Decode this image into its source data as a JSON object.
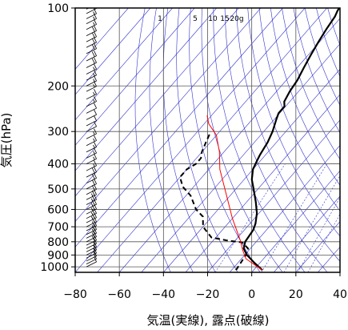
{
  "chart_data": {
    "type": "line",
    "title": "",
    "xlabel": "気温(実線), 露点(破線)",
    "ylabel": "気圧(hPa)",
    "xlim": [
      -80,
      40
    ],
    "ylim": [
      1050,
      100
    ],
    "y_scale": "log",
    "x_ticks": [
      -80,
      -60,
      -40,
      -20,
      0,
      20,
      40
    ],
    "x_tick_labels": [
      "−80",
      "−60",
      "−40",
      "−20",
      "0",
      "20",
      "40"
    ],
    "y_ticks": [
      100,
      200,
      300,
      400,
      500,
      600,
      700,
      800,
      900,
      1000
    ],
    "mixing_ratio_labels": [
      "1",
      "5",
      "10",
      "15",
      "20g"
    ],
    "grid": true,
    "colors": {
      "temperature": "#000000",
      "dewpoint": "#000000",
      "parcel": "#ff0000",
      "guide_lines": "#3333cc",
      "grid": "#555555"
    },
    "series": [
      {
        "line_style": "solid",
        "points": [
          {
            "t": 4.0,
            "p": 1030
          },
          {
            "t": -3.0,
            "p": 960
          },
          {
            "t": -9.0,
            "p": 900
          },
          {
            "t": -13.0,
            "p": 850
          },
          {
            "t": -15.0,
            "p": 800
          },
          {
            "t": -15.5,
            "p": 760
          },
          {
            "t": -16.0,
            "p": 720
          },
          {
            "t": -17.5,
            "p": 680
          },
          {
            "t": -21.0,
            "p": 620
          },
          {
            "t": -26.0,
            "p": 560
          },
          {
            "t": -32.0,
            "p": 500
          },
          {
            "t": -36.5,
            "p": 460
          },
          {
            "t": -40.0,
            "p": 420
          },
          {
            "t": -41.5,
            "p": 390
          },
          {
            "t": -42.5,
            "p": 370
          },
          {
            "t": -44.0,
            "p": 330
          },
          {
            "t": -46.0,
            "p": 300
          },
          {
            "t": -49.0,
            "p": 270
          },
          {
            "t": -50.5,
            "p": 255
          },
          {
            "t": -50.5,
            "p": 240
          },
          {
            "t": -52.5,
            "p": 230
          },
          {
            "t": -54.0,
            "p": 210
          },
          {
            "t": -55.0,
            "p": 190
          },
          {
            "t": -57.0,
            "p": 170
          },
          {
            "t": -59.0,
            "p": 150
          },
          {
            "t": -60.5,
            "p": 135
          },
          {
            "t": -62.0,
            "p": 120
          },
          {
            "t": -63.0,
            "p": 108
          },
          {
            "t": -64.0,
            "p": 103
          },
          {
            "t": -64.5,
            "p": 100
          }
        ]
      },
      {
        "line_style": "dashed",
        "points": [
          {
            "t": -8.0,
            "p": 1030
          },
          {
            "t": -9.5,
            "p": 900
          },
          {
            "t": -11.0,
            "p": 850
          },
          {
            "t": -16.0,
            "p": 805
          },
          {
            "t": -24.0,
            "p": 790
          },
          {
            "t": -32.0,
            "p": 770
          },
          {
            "t": -40.0,
            "p": 700
          },
          {
            "t": -44.0,
            "p": 640
          },
          {
            "t": -50.0,
            "p": 600
          },
          {
            "t": -58.0,
            "p": 530
          },
          {
            "t": -65.0,
            "p": 490
          },
          {
            "t": -70.0,
            "p": 450
          },
          {
            "t": -70.0,
            "p": 420
          },
          {
            "t": -68.0,
            "p": 400
          },
          {
            "t": -68.0,
            "p": 380
          },
          {
            "t": -70.0,
            "p": 360
          },
          {
            "t": -72.0,
            "p": 330
          },
          {
            "t": -74.0,
            "p": 300
          }
        ]
      },
      {
        "line_style": "solid",
        "points": [
          {
            "t": 4.0,
            "p": 1030
          },
          {
            "t": -8.0,
            "p": 930
          },
          {
            "t": -13.0,
            "p": 860
          },
          {
            "t": -17.0,
            "p": 800
          },
          {
            "t": -30.0,
            "p": 650
          },
          {
            "t": -45.0,
            "p": 500
          },
          {
            "t": -55.0,
            "p": 420
          },
          {
            "t": -62.0,
            "p": 360
          },
          {
            "t": -70.0,
            "p": 310
          },
          {
            "t": -78.0,
            "p": 280
          },
          {
            "t": -82.0,
            "p": 260
          }
        ]
      }
    ],
    "wind_barbs": [
      {
        "p": 1000,
        "speed": 10
      },
      {
        "p": 975,
        "speed": 10
      },
      {
        "p": 950,
        "speed": 10
      },
      {
        "p": 925,
        "speed": 15
      },
      {
        "p": 900,
        "speed": 15
      },
      {
        "p": 875,
        "speed": 15
      },
      {
        "p": 850,
        "speed": 15
      },
      {
        "p": 825,
        "speed": 20
      },
      {
        "p": 800,
        "speed": 20
      },
      {
        "p": 775,
        "speed": 20
      },
      {
        "p": 750,
        "speed": 20
      },
      {
        "p": 725,
        "speed": 20
      },
      {
        "p": 700,
        "speed": 20
      },
      {
        "p": 675,
        "speed": 25
      },
      {
        "p": 650,
        "speed": 25
      },
      {
        "p": 625,
        "speed": 25
      },
      {
        "p": 600,
        "speed": 25
      },
      {
        "p": 575,
        "speed": 25
      },
      {
        "p": 550,
        "speed": 25
      },
      {
        "p": 525,
        "speed": 20
      },
      {
        "p": 500,
        "speed": 20
      },
      {
        "p": 475,
        "speed": 20
      },
      {
        "p": 450,
        "speed": 20
      },
      {
        "p": 425,
        "speed": 15
      },
      {
        "p": 400,
        "speed": 15
      },
      {
        "p": 380,
        "speed": 15
      },
      {
        "p": 360,
        "speed": 15
      },
      {
        "p": 340,
        "speed": 15
      },
      {
        "p": 320,
        "speed": 15
      },
      {
        "p": 300,
        "speed": 10
      },
      {
        "p": 285,
        "speed": 10
      },
      {
        "p": 270,
        "speed": 10
      },
      {
        "p": 255,
        "speed": 10
      },
      {
        "p": 240,
        "speed": 15
      },
      {
        "p": 225,
        "speed": 15
      },
      {
        "p": 210,
        "speed": 15
      },
      {
        "p": 200,
        "speed": 15
      },
      {
        "p": 190,
        "speed": 15
      },
      {
        "p": 180,
        "speed": 15
      },
      {
        "p": 170,
        "speed": 20
      },
      {
        "p": 160,
        "speed": 20
      },
      {
        "p": 150,
        "speed": 20
      },
      {
        "p": 142,
        "speed": 20
      },
      {
        "p": 135,
        "speed": 20
      },
      {
        "p": 128,
        "speed": 20
      },
      {
        "p": 121,
        "speed": 15
      },
      {
        "p": 115,
        "speed": 15
      },
      {
        "p": 110,
        "speed": 15
      },
      {
        "p": 105,
        "speed": 15
      },
      {
        "p": 101,
        "speed": 15
      }
    ]
  }
}
